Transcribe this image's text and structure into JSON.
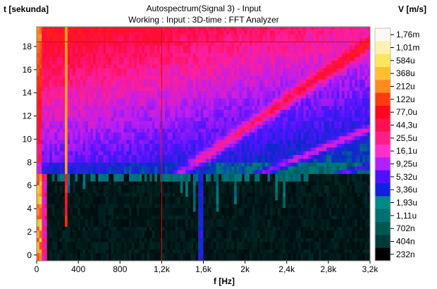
{
  "chart_data": {
    "type": "heatmap",
    "title": "Autospectrum(Signal 3) - Input",
    "subtitle": "Working : Input : 3D-time : FFT Analyzer",
    "xlabel": "f [Hz]",
    "ylabel": "t [sekunda]",
    "zlabel": "V [m/s]",
    "xlim": [
      0,
      3200
    ],
    "ylim": [
      -0.5,
      19.7
    ],
    "x_ticks": [
      "0",
      "400",
      "800",
      "1,2k",
      "1,6k",
      "2k",
      "2,4k",
      "2,8k",
      "3,2k"
    ],
    "x_tick_values": [
      0,
      400,
      800,
      1200,
      1600,
      2000,
      2400,
      2800,
      3200
    ],
    "y_ticks": [
      "0",
      "2",
      "4",
      "6",
      "8",
      "10",
      "12",
      "14",
      "16",
      "18"
    ],
    "y_tick_values": [
      0,
      2,
      4,
      6,
      8,
      10,
      12,
      14,
      16,
      18
    ],
    "colorbar_labels": [
      "1,76m",
      "1,01m",
      "584u",
      "368u",
      "212u",
      "122u",
      "77,0u",
      "44,3u",
      "25,5u",
      "16,1u",
      "9,25u",
      "5,32u",
      "3,36u",
      "1,93u",
      "1,11u",
      "702n",
      "404n",
      "232n"
    ],
    "colorbar_colors": [
      "#fff8f0",
      "#fff2b0",
      "#ffe460",
      "#ffc030",
      "#ff8a20",
      "#ff3a10",
      "#ff0820",
      "#ff1050",
      "#ff1e88",
      "#ff30c8",
      "#b020ff",
      "#5010ff",
      "#1020e0",
      "#008888",
      "#007070",
      "#005850",
      "#003a38",
      "#000000"
    ],
    "cursor": {
      "f": 1200,
      "t": 18.4
    },
    "grid": false
  }
}
